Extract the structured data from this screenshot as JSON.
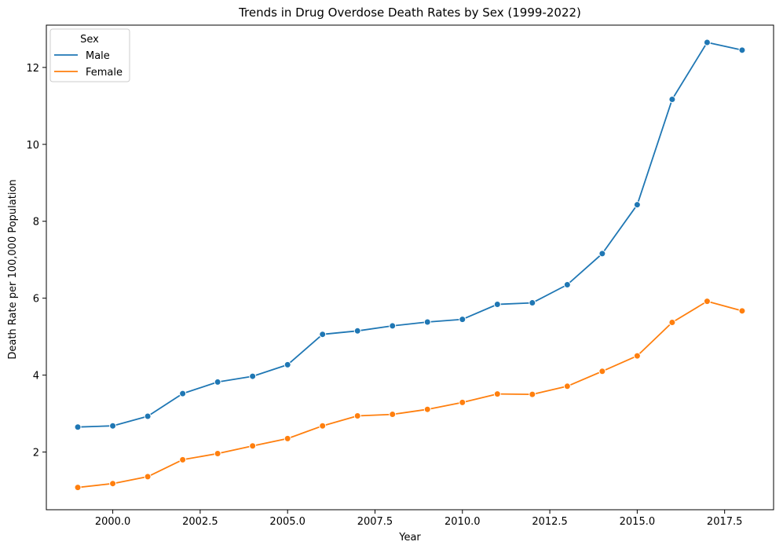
{
  "chart_data": {
    "type": "line",
    "title": "Trends in Drug Overdose Death Rates by Sex (1999-2022)",
    "xlabel": "Year",
    "ylabel": "Death Rate per 100,000 Population",
    "xlim": [
      1998.1,
      2018.9
    ],
    "ylim": [
      0.5,
      13.1
    ],
    "xticks": [
      2000.0,
      2002.5,
      2005.0,
      2007.5,
      2010.0,
      2012.5,
      2015.0,
      2017.5
    ],
    "xtick_labels": [
      "2000.0",
      "2002.5",
      "2005.0",
      "2007.5",
      "2010.0",
      "2012.5",
      "2015.0",
      "2017.5"
    ],
    "yticks": [
      2,
      4,
      6,
      8,
      10,
      12
    ],
    "ytick_labels": [
      "2",
      "4",
      "6",
      "8",
      "10",
      "12"
    ],
    "grid": false,
    "legend": {
      "title": "Sex",
      "placement": "top-left"
    },
    "x": [
      1999,
      2000,
      2001,
      2002,
      2003,
      2004,
      2005,
      2006,
      2007,
      2008,
      2009,
      2010,
      2011,
      2012,
      2013,
      2014,
      2015,
      2016,
      2017,
      2018
    ],
    "series": [
      {
        "name": "Male",
        "color": "#1f77b4",
        "values": [
          2.65,
          2.68,
          2.93,
          3.52,
          3.82,
          3.97,
          4.27,
          5.06,
          5.15,
          5.28,
          5.38,
          5.45,
          5.84,
          5.88,
          6.35,
          7.16,
          8.43,
          11.17,
          12.65,
          12.45
        ]
      },
      {
        "name": "Female",
        "color": "#ff7f0e",
        "values": [
          1.08,
          1.18,
          1.36,
          1.8,
          1.96,
          2.16,
          2.35,
          2.68,
          2.94,
          2.98,
          3.11,
          3.29,
          3.51,
          3.5,
          3.71,
          4.1,
          4.5,
          5.37,
          5.92,
          5.67
        ]
      }
    ]
  }
}
